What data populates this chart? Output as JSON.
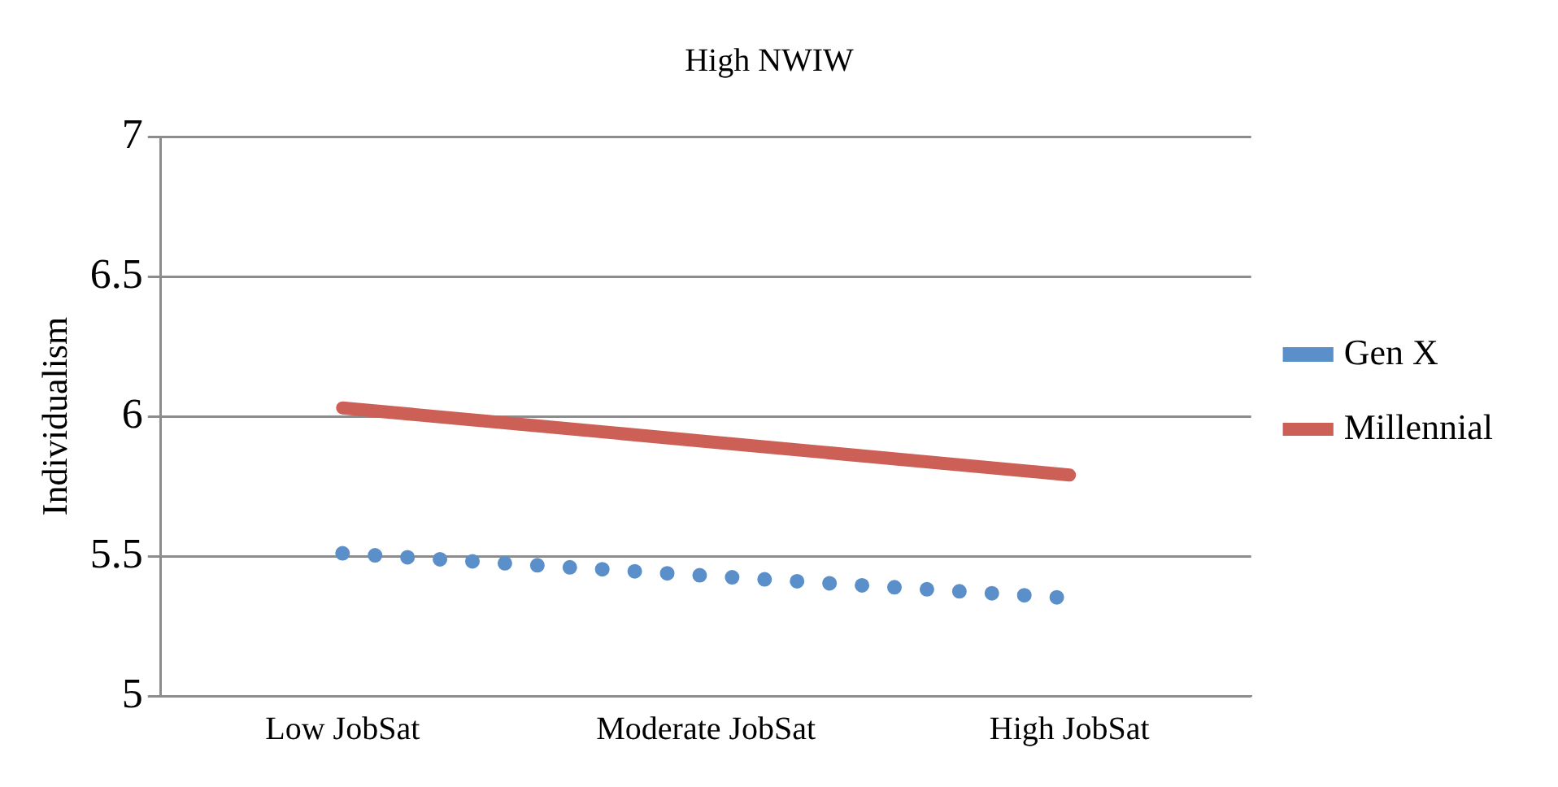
{
  "chart_data": {
    "type": "line",
    "title": "High NWIW",
    "ylabel": "Individualism",
    "categories": [
      "Low JobSat",
      "Moderate JobSat",
      "High JobSat"
    ],
    "series": [
      {
        "name": "Gen X",
        "color": "#5b8fc9",
        "values": [
          5.51,
          5.43,
          5.35
        ],
        "line_style": "dotted"
      },
      {
        "name": "Millennial",
        "color": "#cc6057",
        "values": [
          6.03,
          5.91,
          5.79
        ],
        "line_style": "solid"
      }
    ],
    "ylim": [
      5,
      7
    ],
    "yticks": [
      5,
      5.5,
      6,
      6.5,
      7
    ],
    "grid": "y",
    "legend": "right",
    "marker": "none"
  }
}
